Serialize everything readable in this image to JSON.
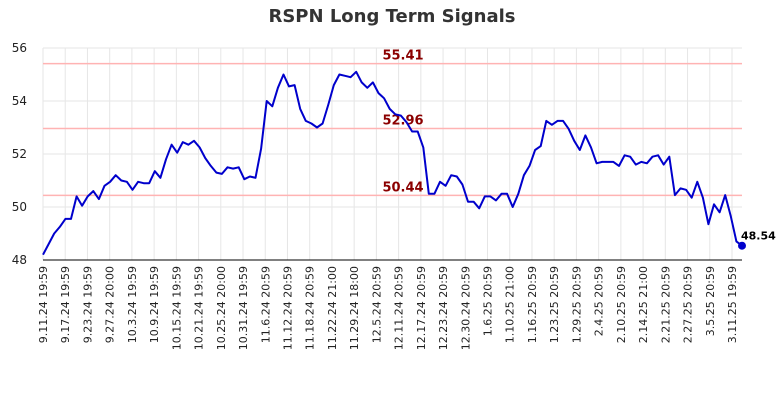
{
  "chart_data": {
    "type": "line",
    "title": "RSPN Long Term Signals",
    "ylim": [
      48,
      56
    ],
    "y_ticks": [
      48,
      50,
      52,
      54,
      56
    ],
    "grid": true,
    "x_tick_labels": [
      "9.11.24 19:59",
      "9.17.24 19:59",
      "9.23.24 19:59",
      "9.27.24 20:00",
      "10.3.24 19:59",
      "10.9.24 19:59",
      "10.15.24 19:59",
      "10.21.24 19:59",
      "10.25.24 20:00",
      "10.31.24 19:59",
      "11.6.24 20:59",
      "11.12.24 20:59",
      "11.18.24 20:59",
      "11.22.24 21:00",
      "11.29.24 18:00",
      "12.5.24 20:59",
      "12.11.24 20:59",
      "12.17.24 20:59",
      "12.23.24 20:59",
      "12.30.24 20:59",
      "1.6.25 20:59",
      "1.10.25 21:00",
      "1.16.25 20:59",
      "1.23.25 20:59",
      "1.29.25 20:59",
      "2.4.25 20:59",
      "2.10.25 20:59",
      "2.14.25 21:00",
      "2.21.25 20:59",
      "2.27.25 20:59",
      "3.5.25 20:59",
      "3.11.25 19:59"
    ],
    "horizontal_lines": [
      {
        "value": 55.41,
        "label": "55.41",
        "color": "#ffb3b3"
      },
      {
        "value": 52.96,
        "label": "52.96",
        "color": "#ffb3b3"
      },
      {
        "value": 50.44,
        "label": "50.44",
        "color": "#ffb3b3"
      }
    ],
    "line_color": "#0000cc",
    "last_value_label": "48.54",
    "values": [
      48.2,
      48.6,
      49.0,
      49.25,
      49.55,
      49.55,
      50.4,
      50.05,
      50.4,
      50.6,
      50.3,
      50.8,
      50.95,
      51.2,
      51.0,
      50.95,
      50.65,
      50.95,
      50.9,
      50.9,
      51.35,
      51.1,
      51.8,
      52.35,
      52.05,
      52.45,
      52.35,
      52.5,
      52.25,
      51.85,
      51.55,
      51.3,
      51.25,
      51.5,
      51.45,
      51.5,
      51.05,
      51.15,
      51.1,
      52.2,
      54.0,
      53.8,
      54.5,
      55.0,
      54.55,
      54.6,
      53.7,
      53.25,
      53.15,
      53.0,
      53.15,
      53.85,
      54.6,
      55.0,
      54.95,
      54.9,
      55.1,
      54.7,
      54.5,
      54.7,
      54.3,
      54.1,
      53.7,
      53.5,
      53.45,
      53.2,
      52.85,
      52.85,
      52.25,
      50.5,
      50.5,
      50.95,
      50.8,
      51.2,
      51.15,
      50.85,
      50.2,
      50.2,
      49.95,
      50.4,
      50.4,
      50.25,
      50.5,
      50.5,
      50.0,
      50.5,
      51.2,
      51.55,
      52.15,
      52.3,
      53.25,
      53.1,
      53.25,
      53.25,
      52.95,
      52.5,
      52.15,
      52.7,
      52.25,
      51.65,
      51.7,
      51.7,
      51.7,
      51.55,
      51.95,
      51.9,
      51.6,
      51.7,
      51.65,
      51.9,
      51.95,
      51.6,
      51.9,
      50.45,
      50.7,
      50.65,
      50.35,
      50.95,
      50.35,
      49.35,
      50.1,
      49.8,
      50.45,
      49.65,
      48.7,
      48.54
    ]
  }
}
